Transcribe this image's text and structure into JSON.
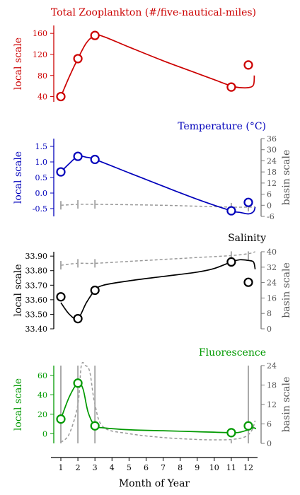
{
  "months": {
    "ticks": [
      1,
      2,
      3,
      4,
      5,
      6,
      7,
      8,
      9,
      10,
      11,
      12
    ],
    "tick_labels": [
      "1",
      "2",
      "3",
      "4",
      "5",
      "6",
      "7",
      "8",
      "9",
      "10",
      "11",
      "12"
    ],
    "xlabel": "Month of Year"
  },
  "chart_data": [
    {
      "type": "line",
      "title": "Total Zooplankton (#/five-nautical-miles)",
      "color": "#cc0000",
      "ylabel_local": "local scale",
      "ylim_local": [
        30,
        175
      ],
      "yticks_local": [
        40,
        80,
        120,
        160
      ],
      "ytick_labels_local": [
        "40",
        "80",
        "120",
        "160"
      ],
      "points": {
        "x": [
          1,
          2,
          3,
          11,
          12
        ],
        "y": [
          40,
          112,
          156,
          58,
          100
        ]
      },
      "curve": {
        "x": [
          1,
          1.5,
          2,
          2.5,
          3,
          3.5,
          5,
          7,
          9,
          10,
          11,
          11.5,
          12,
          12.3,
          12.35
        ],
        "y": [
          40,
          78,
          112,
          142,
          156,
          154,
          134,
          108,
          84,
          72,
          60,
          57,
          57,
          62,
          80
        ]
      }
    },
    {
      "type": "line",
      "title": "Temperature (°C)",
      "color": "#0000bb",
      "ylabel_local": "local scale",
      "ylabel_basin": "basin scale",
      "ylim_local": [
        -0.75,
        1.75
      ],
      "yticks_local": [
        -0.5,
        0.0,
        0.5,
        1.0,
        1.5
      ],
      "ytick_labels_local": [
        "-0.5",
        "0.0",
        "0.5",
        "1.0",
        "1.5"
      ],
      "ylim_basin": [
        -6,
        36
      ],
      "yticks_basin": [
        -6,
        0,
        6,
        12,
        18,
        24,
        30,
        36
      ],
      "ytick_labels_basin": [
        "-6",
        "0",
        "6",
        "12",
        "18",
        "24",
        "30",
        "36"
      ],
      "points": {
        "x": [
          1,
          2,
          3,
          11,
          12
        ],
        "y": [
          0.68,
          1.18,
          1.08,
          -0.57,
          -0.3
        ]
      },
      "curve": {
        "x": [
          1,
          1.5,
          2,
          2.5,
          3,
          5,
          7,
          9,
          11,
          11.5,
          12,
          12.3,
          12.4
        ],
        "y": [
          0.68,
          0.95,
          1.18,
          1.15,
          1.08,
          0.65,
          0.22,
          -0.2,
          -0.57,
          -0.62,
          -0.67,
          -0.6,
          -0.45
        ]
      },
      "basin_curve": {
        "x": [
          1,
          2,
          3,
          5,
          7,
          9,
          11,
          12,
          12.4
        ],
        "y": [
          0,
          0.5,
          0.5,
          0.3,
          0,
          -0.5,
          -1,
          -1,
          -0.8
        ]
      }
    },
    {
      "type": "line",
      "title": "Salinity",
      "color": "#000000",
      "ylabel_local": "local scale",
      "ylabel_basin": "basin scale",
      "ylim_local": [
        33.4,
        33.93
      ],
      "yticks_local": [
        33.4,
        33.5,
        33.6,
        33.7,
        33.8,
        33.9
      ],
      "ytick_labels_local": [
        "33.40",
        "33.50",
        "33.60",
        "33.70",
        "33.80",
        "33.90"
      ],
      "ylim_basin": [
        0,
        40
      ],
      "yticks_basin": [
        0,
        8,
        16,
        24,
        32,
        40
      ],
      "ytick_labels_basin": [
        "0",
        "8",
        "16",
        "24",
        "32",
        "40"
      ],
      "points": {
        "x": [
          1,
          2,
          3,
          11,
          12
        ],
        "y": [
          33.62,
          33.47,
          33.665,
          33.86,
          33.72
        ]
      },
      "curve": {
        "x": [
          1,
          1.5,
          2,
          2.5,
          3,
          3.5,
          5,
          7,
          9,
          10,
          11,
          11.5,
          12,
          12.3,
          12.4
        ],
        "y": [
          33.58,
          33.5,
          33.47,
          33.58,
          33.665,
          33.7,
          33.73,
          33.76,
          33.79,
          33.815,
          33.86,
          33.875,
          33.87,
          33.86,
          33.81
        ]
      },
      "basin_curve": {
        "x": [
          1,
          2,
          3,
          5,
          7,
          9,
          11,
          12,
          12.4
        ],
        "y": [
          33.3,
          33.4,
          33.4,
          33.5,
          33.6,
          33.7,
          33.8,
          33.9,
          34
        ]
      }
    },
    {
      "type": "line",
      "title": "Fluorescence",
      "color": "#009900",
      "ylabel_local": "local scale",
      "ylabel_basin": "basin scale",
      "ylim_local": [
        -10,
        70
      ],
      "yticks_local": [
        0,
        20,
        40,
        60
      ],
      "ytick_labels_local": [
        "0",
        "20",
        "40",
        "60"
      ],
      "ylim_basin": [
        0,
        24
      ],
      "yticks_basin": [
        0,
        6,
        12,
        18,
        24
      ],
      "ytick_labels_basin": [
        "0",
        "6",
        "12",
        "18",
        "24"
      ],
      "points": {
        "x": [
          1,
          2,
          3,
          11,
          12
        ],
        "y": [
          15,
          52,
          8,
          1,
          8
        ]
      },
      "curve": {
        "x": [
          1,
          1.5,
          2,
          2.3,
          2.6,
          3,
          3.5,
          5,
          7,
          9,
          11,
          11.5,
          12,
          12.3,
          12.45
        ],
        "y": [
          15,
          38,
          52,
          46,
          22,
          8,
          6,
          4,
          3,
          2,
          1,
          1.5,
          4,
          6,
          5
        ]
      },
      "basin_curve": {
        "x": [
          1,
          1.5,
          2,
          2.2,
          2.45,
          2.7,
          3,
          3.5,
          5,
          7,
          9,
          10,
          11,
          11.8,
          12.2,
          12.4
        ],
        "y": [
          0.3,
          3,
          12,
          24,
          24,
          22,
          12,
          5,
          3,
          1.8,
          1.2,
          1.1,
          1.2,
          2,
          4,
          7
        ]
      }
    }
  ]
}
